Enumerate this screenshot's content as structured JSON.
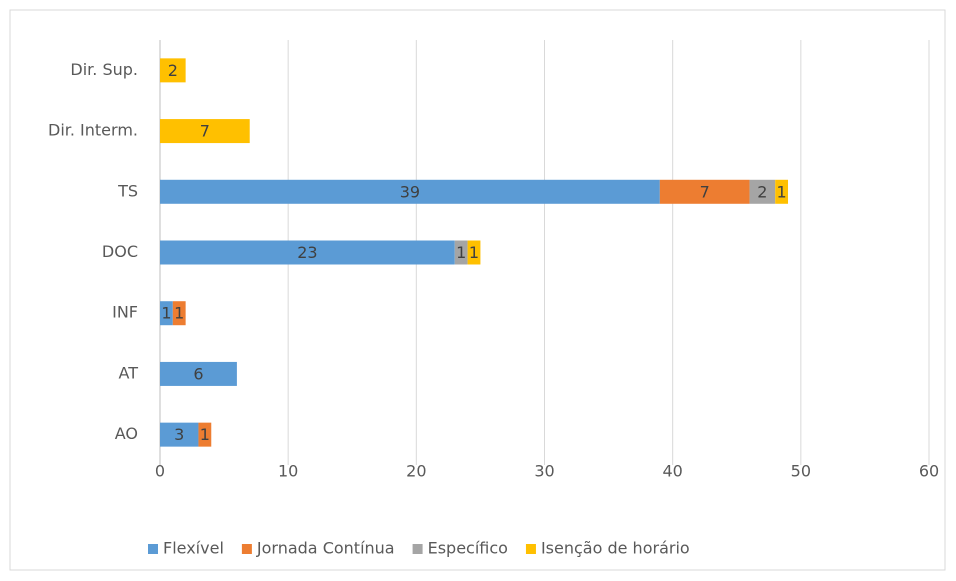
{
  "chart_data": {
    "type": "stacked-bar-horizontal",
    "categories": [
      "Dir. Sup.",
      "Dir. Interm.",
      "TS",
      "DOC",
      "INF",
      "AT",
      "AO"
    ],
    "series": [
      {
        "name": "Flexível",
        "color": "#5b9bd5",
        "values": [
          null,
          null,
          39,
          23,
          1,
          6,
          3
        ]
      },
      {
        "name": "Jornada Contínua",
        "color": "#ed7d31",
        "values": [
          null,
          null,
          7,
          null,
          1,
          null,
          1
        ]
      },
      {
        "name": "Específico",
        "color": "#a5a5a5",
        "values": [
          null,
          null,
          2,
          1,
          null,
          null,
          null
        ]
      },
      {
        "name": "Isenção de horário",
        "color": "#ffc000",
        "values": [
          2,
          7,
          1,
          1,
          null,
          null,
          null
        ]
      }
    ],
    "xlim": [
      0,
      60
    ],
    "xticks": [
      0,
      10,
      20,
      30,
      40,
      50,
      60
    ],
    "grid": true,
    "legend": "bottom"
  }
}
